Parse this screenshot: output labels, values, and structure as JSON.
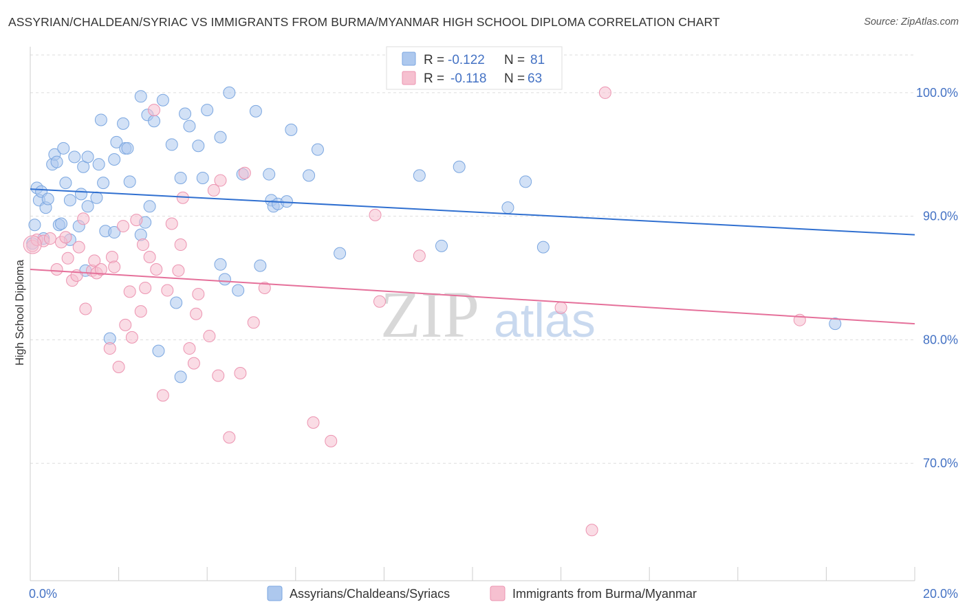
{
  "title": "ASSYRIAN/CHALDEAN/SYRIAC VS IMMIGRANTS FROM BURMA/MYANMAR HIGH SCHOOL DIPLOMA CORRELATION CHART",
  "source": "Source: ZipAtlas.com",
  "watermark": {
    "zip": "ZIP",
    "atlas": "atlas"
  },
  "colors": {
    "blue_fill": "#adc8ee",
    "blue_stroke": "#7aa6e0",
    "blue_line": "#2f6fd0",
    "pink_fill": "#f6c0d0",
    "pink_stroke": "#ec93b0",
    "pink_line": "#e5709a",
    "tick_label": "#4472c4",
    "grid": "#dddddd"
  },
  "legend": {
    "r_label": "R =",
    "n_label": "N =",
    "series1": {
      "r": "-0.122",
      "n": "81"
    },
    "series2": {
      "r": "-0.118",
      "n": "63"
    }
  },
  "chart_data": {
    "type": "scatter",
    "title": "ASSYRIAN/CHALDEAN/SYRIAC VS IMMIGRANTS FROM BURMA/MYANMAR HIGH SCHOOL DIPLOMA CORRELATION CHART",
    "xlabel": "",
    "ylabel": "High School Diploma",
    "xlim": [
      0,
      20
    ],
    "ylim": [
      60.5,
      103.5
    ],
    "x_ticks": [
      0,
      2,
      4,
      6,
      8,
      10,
      12,
      14,
      16,
      18,
      20
    ],
    "x_tick_labels": {
      "0": "0.0%",
      "20": "20.0%"
    },
    "y_ticks": [
      70,
      80,
      90,
      100
    ],
    "y_tick_labels": [
      "70.0%",
      "80.0%",
      "90.0%",
      "100.0%"
    ],
    "grid": "horizontal dashed",
    "legend_position": "top-center",
    "series": [
      {
        "name": "Assyrians/Chaldeans/Syriacs",
        "color": "#adc8ee",
        "trend": {
          "x": [
            0,
            20
          ],
          "y": [
            92.2,
            88.5
          ]
        },
        "points": [
          [
            0.05,
            87.8
          ],
          [
            0.1,
            89.3
          ],
          [
            0.15,
            92.3
          ],
          [
            0.2,
            91.3
          ],
          [
            0.25,
            92.0
          ],
          [
            0.3,
            88.2
          ],
          [
            0.35,
            90.7
          ],
          [
            0.4,
            91.4
          ],
          [
            0.5,
            94.2
          ],
          [
            0.55,
            95.0
          ],
          [
            0.6,
            94.4
          ],
          [
            0.65,
            89.3
          ],
          [
            0.7,
            89.4
          ],
          [
            0.75,
            95.5
          ],
          [
            0.8,
            92.7
          ],
          [
            0.9,
            91.3
          ],
          [
            0.9,
            88.1
          ],
          [
            1.0,
            94.8
          ],
          [
            1.1,
            89.2
          ],
          [
            1.15,
            91.8
          ],
          [
            1.2,
            94.0
          ],
          [
            1.3,
            94.8
          ],
          [
            1.3,
            90.8
          ],
          [
            1.25,
            85.6
          ],
          [
            1.5,
            91.5
          ],
          [
            1.55,
            94.2
          ],
          [
            1.6,
            97.8
          ],
          [
            1.65,
            92.7
          ],
          [
            1.7,
            88.8
          ],
          [
            1.8,
            80.1
          ],
          [
            1.9,
            94.6
          ],
          [
            1.9,
            88.7
          ],
          [
            1.95,
            96.0
          ],
          [
            2.1,
            97.5
          ],
          [
            2.15,
            95.5
          ],
          [
            2.2,
            95.5
          ],
          [
            2.25,
            92.8
          ],
          [
            2.5,
            88.5
          ],
          [
            2.5,
            99.7
          ],
          [
            2.6,
            89.5
          ],
          [
            2.65,
            98.2
          ],
          [
            2.7,
            90.8
          ],
          [
            2.8,
            97.7
          ],
          [
            2.9,
            79.1
          ],
          [
            3.0,
            99.4
          ],
          [
            3.2,
            95.8
          ],
          [
            3.3,
            83.0
          ],
          [
            3.4,
            93.1
          ],
          [
            3.4,
            77.0
          ],
          [
            3.5,
            98.3
          ],
          [
            3.6,
            97.3
          ],
          [
            3.8,
            95.7
          ],
          [
            3.9,
            93.1
          ],
          [
            4.0,
            98.6
          ],
          [
            4.3,
            86.1
          ],
          [
            4.3,
            96.4
          ],
          [
            4.4,
            84.9
          ],
          [
            4.5,
            100.0
          ],
          [
            4.7,
            84.0
          ],
          [
            4.8,
            93.4
          ],
          [
            5.1,
            98.5
          ],
          [
            5.2,
            86.0
          ],
          [
            5.4,
            93.4
          ],
          [
            5.45,
            91.3
          ],
          [
            5.5,
            90.8
          ],
          [
            5.6,
            91.0
          ],
          [
            5.8,
            91.2
          ],
          [
            5.9,
            97.0
          ],
          [
            6.3,
            93.3
          ],
          [
            6.5,
            95.4
          ],
          [
            7.0,
            87.0
          ],
          [
            8.8,
            93.3
          ],
          [
            9.3,
            87.6
          ],
          [
            9.7,
            94.0
          ],
          [
            10.8,
            90.7
          ],
          [
            11.2,
            92.8
          ],
          [
            11.6,
            87.5
          ],
          [
            18.2,
            81.3
          ]
        ]
      },
      {
        "name": "Immigrants from Burma/Myanmar",
        "color": "#f6c0d0",
        "trend": {
          "x": [
            0,
            20
          ],
          "y": [
            85.7,
            81.3
          ]
        },
        "points": [
          [
            0.05,
            87.6
          ],
          [
            0.15,
            88.1
          ],
          [
            0.3,
            88.0
          ],
          [
            0.45,
            88.2
          ],
          [
            0.6,
            85.7
          ],
          [
            0.7,
            87.9
          ],
          [
            0.8,
            88.3
          ],
          [
            0.85,
            86.6
          ],
          [
            0.95,
            84.8
          ],
          [
            1.05,
            85.2
          ],
          [
            1.1,
            87.5
          ],
          [
            1.2,
            89.8
          ],
          [
            1.25,
            82.5
          ],
          [
            1.4,
            85.6
          ],
          [
            1.45,
            86.4
          ],
          [
            1.5,
            85.4
          ],
          [
            1.6,
            85.7
          ],
          [
            1.8,
            79.3
          ],
          [
            1.85,
            86.7
          ],
          [
            1.9,
            85.9
          ],
          [
            2.0,
            77.8
          ],
          [
            2.1,
            89.2
          ],
          [
            2.15,
            81.2
          ],
          [
            2.25,
            83.9
          ],
          [
            2.3,
            80.2
          ],
          [
            2.4,
            89.7
          ],
          [
            2.5,
            82.3
          ],
          [
            2.55,
            87.7
          ],
          [
            2.6,
            84.2
          ],
          [
            2.7,
            86.7
          ],
          [
            2.8,
            98.6
          ],
          [
            2.85,
            85.7
          ],
          [
            3.0,
            75.5
          ],
          [
            3.1,
            84.0
          ],
          [
            3.2,
            89.4
          ],
          [
            3.35,
            85.6
          ],
          [
            3.4,
            87.7
          ],
          [
            3.45,
            91.5
          ],
          [
            3.6,
            79.3
          ],
          [
            3.7,
            78.1
          ],
          [
            3.75,
            82.1
          ],
          [
            3.8,
            83.7
          ],
          [
            4.05,
            80.3
          ],
          [
            4.15,
            92.1
          ],
          [
            4.25,
            77.1
          ],
          [
            4.3,
            92.9
          ],
          [
            4.5,
            72.1
          ],
          [
            4.75,
            77.3
          ],
          [
            4.85,
            93.5
          ],
          [
            5.05,
            81.4
          ],
          [
            5.3,
            84.2
          ],
          [
            6.4,
            73.3
          ],
          [
            6.8,
            71.8
          ],
          [
            7.8,
            90.1
          ],
          [
            7.9,
            83.1
          ],
          [
            8.8,
            86.8
          ],
          [
            12.0,
            82.6
          ],
          [
            12.7,
            64.6
          ],
          [
            13.0,
            100.0
          ],
          [
            17.4,
            81.6
          ]
        ]
      }
    ]
  },
  "bottom_legend": {
    "series1_label": "Assyrians/Chaldeans/Syriacs",
    "series2_label": "Immigrants from Burma/Myanmar"
  }
}
